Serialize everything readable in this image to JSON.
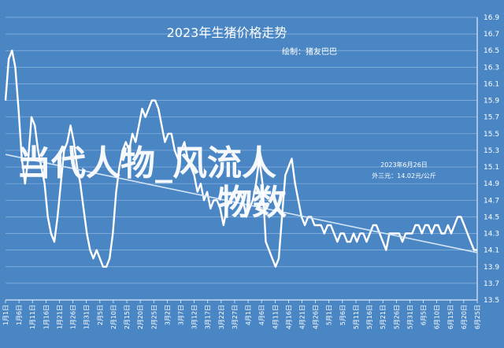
{
  "chart_data": {
    "type": "line",
    "title": "2023年生猪价格走势",
    "subtitle": "绘制：猪友巴巴",
    "ylim": [
      13.5,
      16.9
    ],
    "y_ticks": [
      "16.9",
      "16.7",
      "16.5",
      "16.3",
      "16.1",
      "15.9",
      "15.7",
      "15.5",
      "15.3",
      "15.1",
      "14.9",
      "14.7",
      "14.5",
      "14.3",
      "14.1",
      "13.9",
      "13.7",
      "13.5"
    ],
    "x_ticks": [
      "1月1日",
      "1月6日",
      "1月11日",
      "1月16日",
      "1月21日",
      "1月26日",
      "1月31日",
      "2月5日",
      "2月10日",
      "2月15日",
      "2月20日",
      "2月25日",
      "3月2日",
      "3月7日",
      "3月12日",
      "3月17日",
      "3月22日",
      "3月27日",
      "4月1日",
      "4月6日",
      "4月11日",
      "4月16日",
      "4月21日",
      "4月26日",
      "5月1日",
      "5月6日",
      "5月11日",
      "5月16日",
      "5月21日",
      "5月26日",
      "5月31日",
      "6月5日",
      "6月10日",
      "6月15日",
      "6月20日",
      "6月25日"
    ],
    "grid": true,
    "series": [
      {
        "values": [
          15.9,
          16.4,
          16.5,
          16.3,
          15.8,
          15.2,
          14.9,
          15.2,
          15.7,
          15.6,
          15.3,
          15.1,
          14.9,
          14.5,
          14.3,
          14.2,
          14.5,
          14.9,
          15.3,
          15.4,
          15.6,
          15.4,
          15.1,
          14.9,
          14.6,
          14.3,
          14.1,
          14.0,
          14.1,
          14.0,
          13.9,
          13.9,
          14.0,
          14.3,
          14.8,
          15.1,
          15.3,
          15.4,
          15.3,
          15.5,
          15.4,
          15.6,
          15.8,
          15.7,
          15.8,
          15.9,
          15.9,
          15.8,
          15.6,
          15.4,
          15.5,
          15.5,
          15.3,
          15.2,
          15.3,
          15.4,
          15.2,
          15.1,
          15.0,
          14.8,
          14.9,
          14.7,
          14.8,
          14.6,
          14.7,
          14.7,
          14.6,
          14.4,
          14.6,
          14.7,
          14.8,
          14.7,
          14.8,
          14.7,
          14.5,
          14.6,
          14.7,
          14.9,
          15.2,
          14.9,
          14.2,
          14.1,
          14.0,
          13.9,
          14.0,
          14.5,
          15.0,
          15.1,
          15.2,
          14.9,
          14.7,
          14.5,
          14.4,
          14.5,
          14.5,
          14.4,
          14.4,
          14.4,
          14.3,
          14.4,
          14.4,
          14.3,
          14.2,
          14.3,
          14.3,
          14.2,
          14.2,
          14.3,
          14.2,
          14.3,
          14.3,
          14.2,
          14.3,
          14.4,
          14.4,
          14.3,
          14.2,
          14.1,
          14.3,
          14.3,
          14.3,
          14.3,
          14.2,
          14.3,
          14.3,
          14.3,
          14.4,
          14.4,
          14.3,
          14.4,
          14.4,
          14.3,
          14.4,
          14.4,
          14.3,
          14.3,
          14.4,
          14.3,
          14.4,
          14.5,
          14.5,
          14.4,
          14.3,
          14.2,
          14.1,
          14.1
        ]
      },
      {
        "values": [
          15.25,
          14.07
        ]
      }
    ],
    "annotation": [
      "2023年6月26日",
      "外三元：14.02元/公斤"
    ]
  },
  "watermark": {
    "line1": "当代人物_风流人",
    "line2": "物数"
  }
}
